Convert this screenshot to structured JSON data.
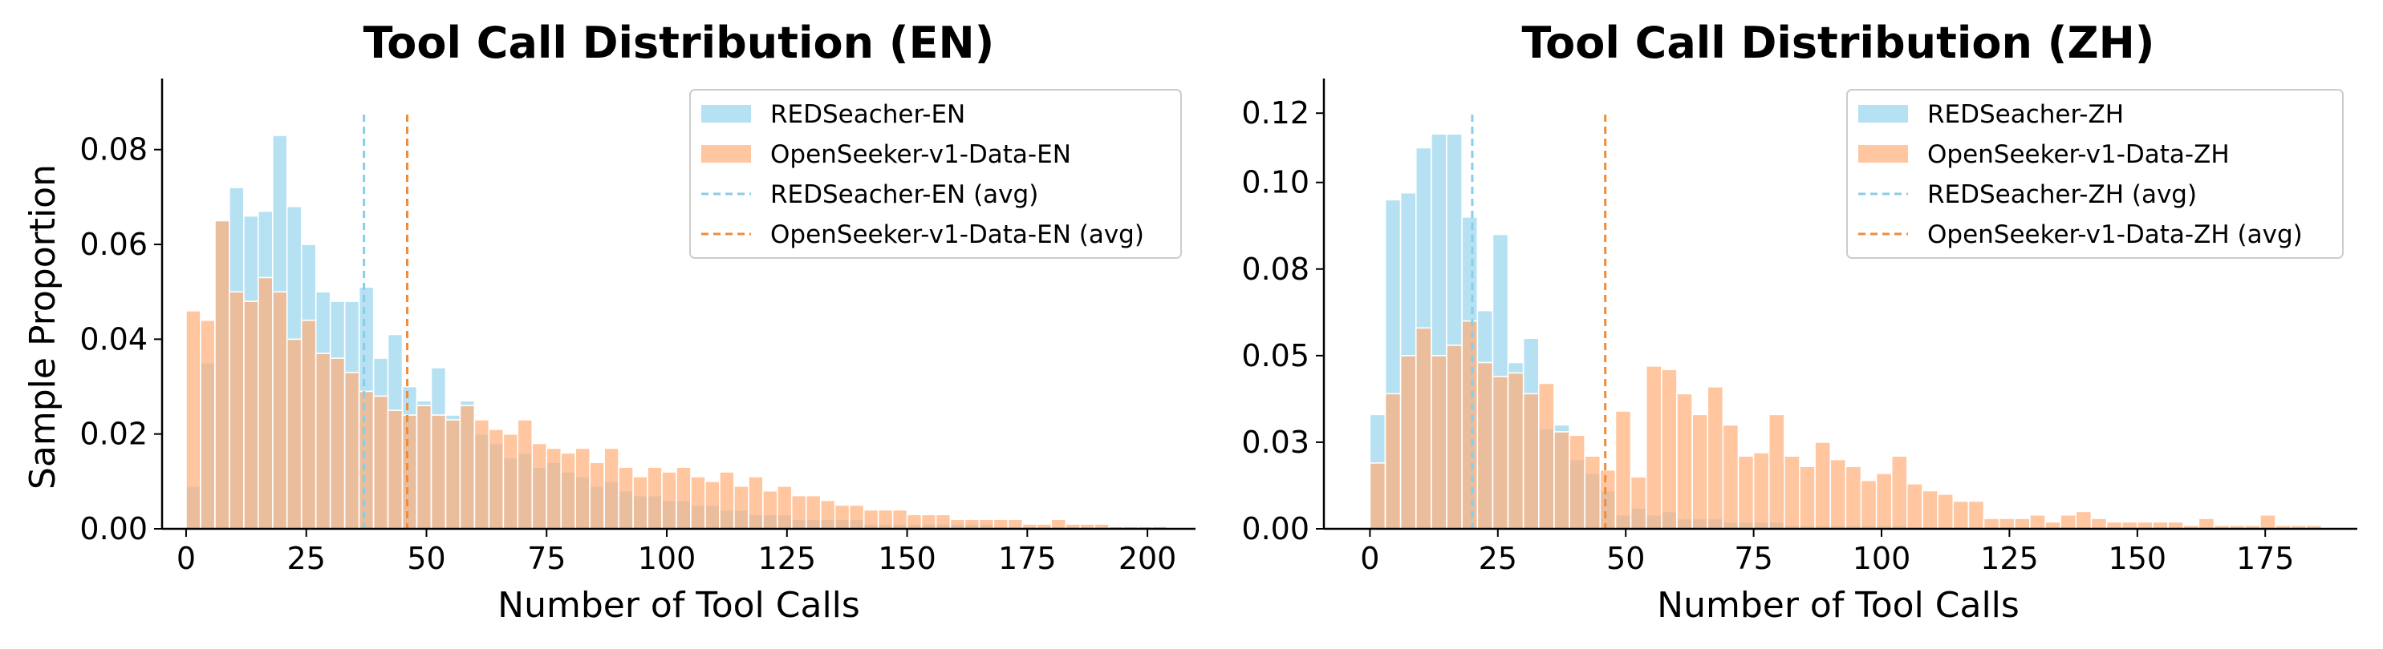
{
  "chart_data": [
    {
      "type": "bar",
      "title": "Tool Call Distribution (EN)",
      "xlabel": "Number of Tool Calls",
      "ylabel": "Sample Proportion",
      "xlim": [
        -5,
        210
      ],
      "ylim": [
        0,
        0.095
      ],
      "xticks": [
        0,
        25,
        50,
        75,
        100,
        125,
        150,
        175,
        200
      ],
      "xtick_labels": [
        "0",
        "25",
        "50",
        "75",
        "100",
        "125",
        "150",
        "175",
        "200"
      ],
      "yticks": [
        0,
        0.02,
        0.04,
        0.06,
        0.08
      ],
      "ytick_labels": [
        "0.00",
        "0.02",
        "0.04",
        "0.06",
        "0.08"
      ],
      "bin_width": 3,
      "legend_position": "top-right",
      "grid": false,
      "series": [
        {
          "name": "REDSeacher-EN",
          "color": "#87CEEB",
          "x": [
            0,
            3,
            6,
            9,
            12,
            15,
            18,
            21,
            24,
            27,
            30,
            33,
            36,
            39,
            42,
            45,
            48,
            51,
            54,
            57,
            60,
            63,
            66,
            69,
            72,
            75,
            78,
            81,
            84,
            87,
            90,
            93,
            96,
            99,
            102,
            105,
            108,
            111,
            114,
            117,
            120,
            123,
            126,
            129,
            132,
            135,
            138,
            141,
            144,
            147,
            150,
            153,
            156,
            159,
            162,
            165,
            168,
            171,
            174,
            177,
            180,
            183,
            186,
            189,
            192,
            195,
            198,
            201
          ],
          "values": [
            0.009,
            0.035,
            0.065,
            0.072,
            0.066,
            0.067,
            0.083,
            0.068,
            0.06,
            0.05,
            0.048,
            0.048,
            0.051,
            0.036,
            0.041,
            0.03,
            0.027,
            0.034,
            0.024,
            0.027,
            0.02,
            0.018,
            0.015,
            0.016,
            0.013,
            0.014,
            0.012,
            0.011,
            0.009,
            0.01,
            0.008,
            0.007,
            0.007,
            0.006,
            0.006,
            0.005,
            0.005,
            0.004,
            0.004,
            0.003,
            0.003,
            0.003,
            0.002,
            0.002,
            0.002,
            0.002,
            0.002,
            0.001,
            0.001,
            0.001,
            0.001,
            0.001,
            0.001,
            0.001,
            0.001,
            0.001,
            0.0005,
            0.0005,
            0.0005,
            0.0005,
            0.0005,
            0.0005,
            0.0005,
            0.0005,
            0.0005,
            0.0005,
            0.0005,
            0.0005
          ]
        },
        {
          "name": "OpenSeeker-v1-Data-EN",
          "color": "#FFB07C",
          "x": [
            0,
            3,
            6,
            9,
            12,
            15,
            18,
            21,
            24,
            27,
            30,
            33,
            36,
            39,
            42,
            45,
            48,
            51,
            54,
            57,
            60,
            63,
            66,
            69,
            72,
            75,
            78,
            81,
            84,
            87,
            90,
            93,
            96,
            99,
            102,
            105,
            108,
            111,
            114,
            117,
            120,
            123,
            126,
            129,
            132,
            135,
            138,
            141,
            144,
            147,
            150,
            153,
            156,
            159,
            162,
            165,
            168,
            171,
            174,
            177,
            180,
            183,
            186,
            189,
            192,
            195,
            198,
            201
          ],
          "values": [
            0.046,
            0.044,
            0.065,
            0.05,
            0.048,
            0.053,
            0.05,
            0.04,
            0.044,
            0.037,
            0.036,
            0.033,
            0.029,
            0.028,
            0.025,
            0.024,
            0.026,
            0.024,
            0.023,
            0.026,
            0.023,
            0.021,
            0.02,
            0.023,
            0.018,
            0.017,
            0.016,
            0.017,
            0.014,
            0.017,
            0.013,
            0.011,
            0.013,
            0.012,
            0.013,
            0.011,
            0.01,
            0.012,
            0.009,
            0.011,
            0.008,
            0.009,
            0.007,
            0.007,
            0.006,
            0.005,
            0.005,
            0.004,
            0.004,
            0.004,
            0.003,
            0.003,
            0.003,
            0.002,
            0.002,
            0.002,
            0.002,
            0.002,
            0.001,
            0.001,
            0.002,
            0.001,
            0.001,
            0.001,
            0.0005,
            0.0005,
            0.0005,
            0.0005
          ]
        }
      ],
      "averages": [
        {
          "name": "REDSeacher-EN (avg)",
          "x": 37,
          "color": "#87CEEB"
        },
        {
          "name": "OpenSeeker-v1-Data-EN (avg)",
          "x": 46,
          "color": "#F08C38"
        }
      ]
    },
    {
      "type": "bar",
      "title": "Tool Call Distribution (ZH)",
      "xlabel": "Number of Tool Calls",
      "ylabel": "",
      "xlim": [
        -9,
        193
      ],
      "ylim": [
        0,
        0.13
      ],
      "xticks": [
        0,
        25,
        50,
        75,
        100,
        125,
        150,
        175
      ],
      "xtick_labels": [
        "0",
        "25",
        "50",
        "75",
        "100",
        "125",
        "150",
        "175"
      ],
      "yticks": [
        0,
        0.025,
        0.05,
        0.075,
        0.1,
        0.12
      ],
      "ytick_labels": [
        "0.00",
        "0.03",
        "0.05",
        "0.08",
        "0.10",
        "0.12"
      ],
      "bin_width": 3,
      "legend_position": "top-right",
      "grid": false,
      "series": [
        {
          "name": "REDSeacher-ZH",
          "color": "#87CEEB",
          "x": [
            0,
            3,
            6,
            9,
            12,
            15,
            18,
            21,
            24,
            27,
            30,
            33,
            36,
            39,
            42,
            45,
            48,
            51,
            54,
            57,
            60,
            63,
            66,
            69,
            72,
            75,
            78,
            81,
            84,
            87,
            90,
            93,
            96,
            99,
            102,
            105,
            108,
            111,
            114,
            117,
            120,
            123,
            126,
            129,
            132,
            135,
            138,
            141,
            144,
            147,
            150,
            153,
            156,
            159,
            162,
            165,
            168,
            171,
            174,
            177,
            180,
            183
          ],
          "values": [
            0.033,
            0.095,
            0.097,
            0.11,
            0.114,
            0.114,
            0.09,
            0.063,
            0.085,
            0.048,
            0.055,
            0.029,
            0.03,
            0.02,
            0.016,
            0.011,
            0.004,
            0.006,
            0.004,
            0.005,
            0.003,
            0.003,
            0.003,
            0.002,
            0.002,
            0.002,
            0.002,
            0.001,
            0.001,
            0.001,
            0.001,
            0.001,
            0.001,
            0.001,
            0.001,
            0.0005,
            0.0005,
            0.0005,
            0.0005,
            0.0005,
            0.0005,
            0.0005,
            0.0005,
            0.0005,
            0.0005,
            0.0005,
            0.0005,
            0.0005,
            0.0005,
            0.0005,
            0.0005,
            0.0005,
            0.0005,
            0.0005,
            0.0005,
            0.0005,
            0.0005,
            0.0005,
            0.0005,
            0.0005,
            0.0005,
            0.0005
          ]
        },
        {
          "name": "OpenSeeker-v1-Data-ZH",
          "color": "#FFB07C",
          "x": [
            0,
            3,
            6,
            9,
            12,
            15,
            18,
            21,
            24,
            27,
            30,
            33,
            36,
            39,
            42,
            45,
            48,
            51,
            54,
            57,
            60,
            63,
            66,
            69,
            72,
            75,
            78,
            81,
            84,
            87,
            90,
            93,
            96,
            99,
            102,
            105,
            108,
            111,
            114,
            117,
            120,
            123,
            126,
            129,
            132,
            135,
            138,
            141,
            144,
            147,
            150,
            153,
            156,
            159,
            162,
            165,
            168,
            171,
            174,
            177,
            180,
            183
          ],
          "values": [
            0.019,
            0.039,
            0.05,
            0.058,
            0.05,
            0.053,
            0.06,
            0.048,
            0.044,
            0.045,
            0.039,
            0.042,
            0.028,
            0.027,
            0.021,
            0.017,
            0.034,
            0.015,
            0.047,
            0.046,
            0.039,
            0.033,
            0.041,
            0.03,
            0.021,
            0.022,
            0.033,
            0.021,
            0.018,
            0.025,
            0.02,
            0.018,
            0.014,
            0.016,
            0.021,
            0.013,
            0.011,
            0.01,
            0.008,
            0.008,
            0.003,
            0.003,
            0.003,
            0.004,
            0.002,
            0.004,
            0.005,
            0.003,
            0.002,
            0.002,
            0.002,
            0.002,
            0.002,
            0.001,
            0.003,
            0.001,
            0.001,
            0.001,
            0.004,
            0.001,
            0.001,
            0.001
          ]
        }
      ],
      "averages": [
        {
          "name": "REDSeacher-ZH (avg)",
          "x": 20,
          "color": "#87CEEB"
        },
        {
          "name": "OpenSeeker-v1-Data-ZH (avg)",
          "x": 46,
          "color": "#F08C38"
        }
      ]
    }
  ]
}
